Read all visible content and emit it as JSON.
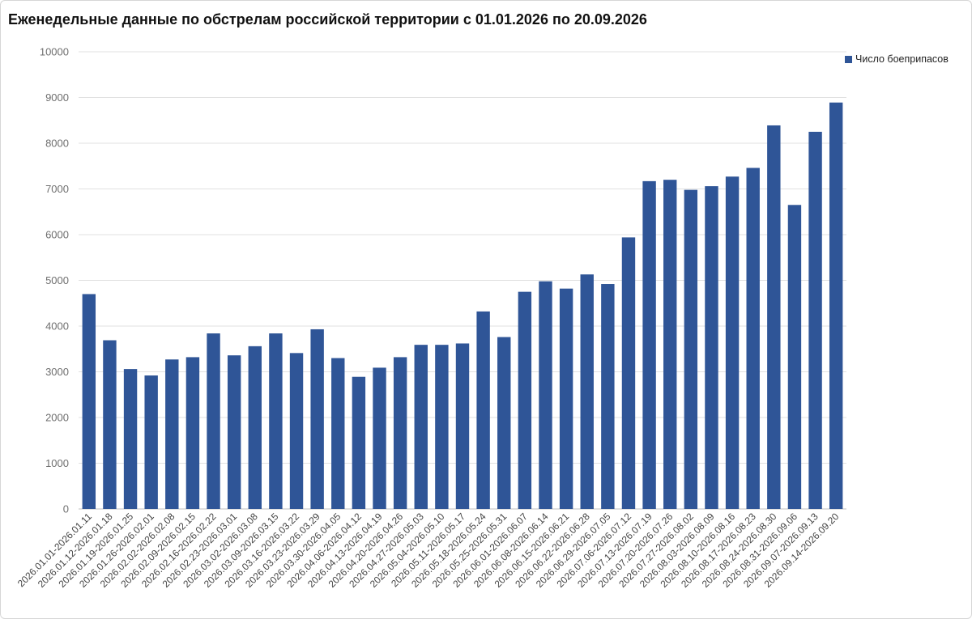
{
  "chart_data": {
    "type": "bar",
    "title": "Еженедельные данные по обстрелам российской территории с 01.01.2026 по 20.09.2026",
    "xlabel": "",
    "ylabel": "",
    "ylim": [
      0,
      10000
    ],
    "yticks": [
      0,
      1000,
      2000,
      3000,
      4000,
      5000,
      6000,
      7000,
      8000,
      9000,
      10000
    ],
    "grid": true,
    "legend_position": "top-right",
    "categories": [
      "2026.01.01-2026.01.11",
      "2026.01.12-2026.01.18",
      "2026.01.19-2026.01.25",
      "2026.01.26-2026.02.01",
      "2026.02.02-2026.02.08",
      "2026.02.09-2026.02.15",
      "2026.02.16-2026.02.22",
      "2026.02.23-2026.03.01",
      "2026.03.02-2026.03.08",
      "2026.03.09-2026.03.15",
      "2026.03.16-2026.03.22",
      "2026.03.23-2026.03.29",
      "2026.03.30-2026.04.05",
      "2026.04.06-2026.04.12",
      "2026.04.13-2026.04.19",
      "2026.04.20-2026.04.26",
      "2026.04.27-2026.05.03",
      "2026.05.04-2026.05.10",
      "2026.05.11-2026.05.17",
      "2026.05.18-2026.05.24",
      "2026.05.25-2026.05.31",
      "2026.06.01-2026.06.07",
      "2026.06.08-2026.06.14",
      "2026.06.15-2026.06.21",
      "2026.06.22-2026.06.28",
      "2026.06.29-2026.07.05",
      "2026.07.06-2026.07.12",
      "2026.07.13-2026.07.19",
      "2026.07.20-2026.07.26",
      "2026.07.27-2026.08.02",
      "2026.08.03-2026.08.09",
      "2026.08.10-2026.08.16",
      "2026.08.17-2026.08.23",
      "2026.08.24-2026.08.30",
      "2026.08.31-2026.09.06",
      "2026.09.07-2026.09.13",
      "2026.09.14-2026.09.20"
    ],
    "series": [
      {
        "name": "Число боеприпасов",
        "color": "#2f5597",
        "values": [
          4700,
          3690,
          3060,
          2920,
          3270,
          3320,
          3840,
          3360,
          3560,
          3840,
          3410,
          3930,
          3300,
          2890,
          3090,
          3320,
          3590,
          3590,
          3620,
          4320,
          3760,
          4750,
          4980,
          4820,
          5130,
          4920,
          5940,
          7170,
          7200,
          6980,
          7060,
          7270,
          7460,
          8390,
          6650,
          8250,
          8890
        ]
      }
    ]
  }
}
